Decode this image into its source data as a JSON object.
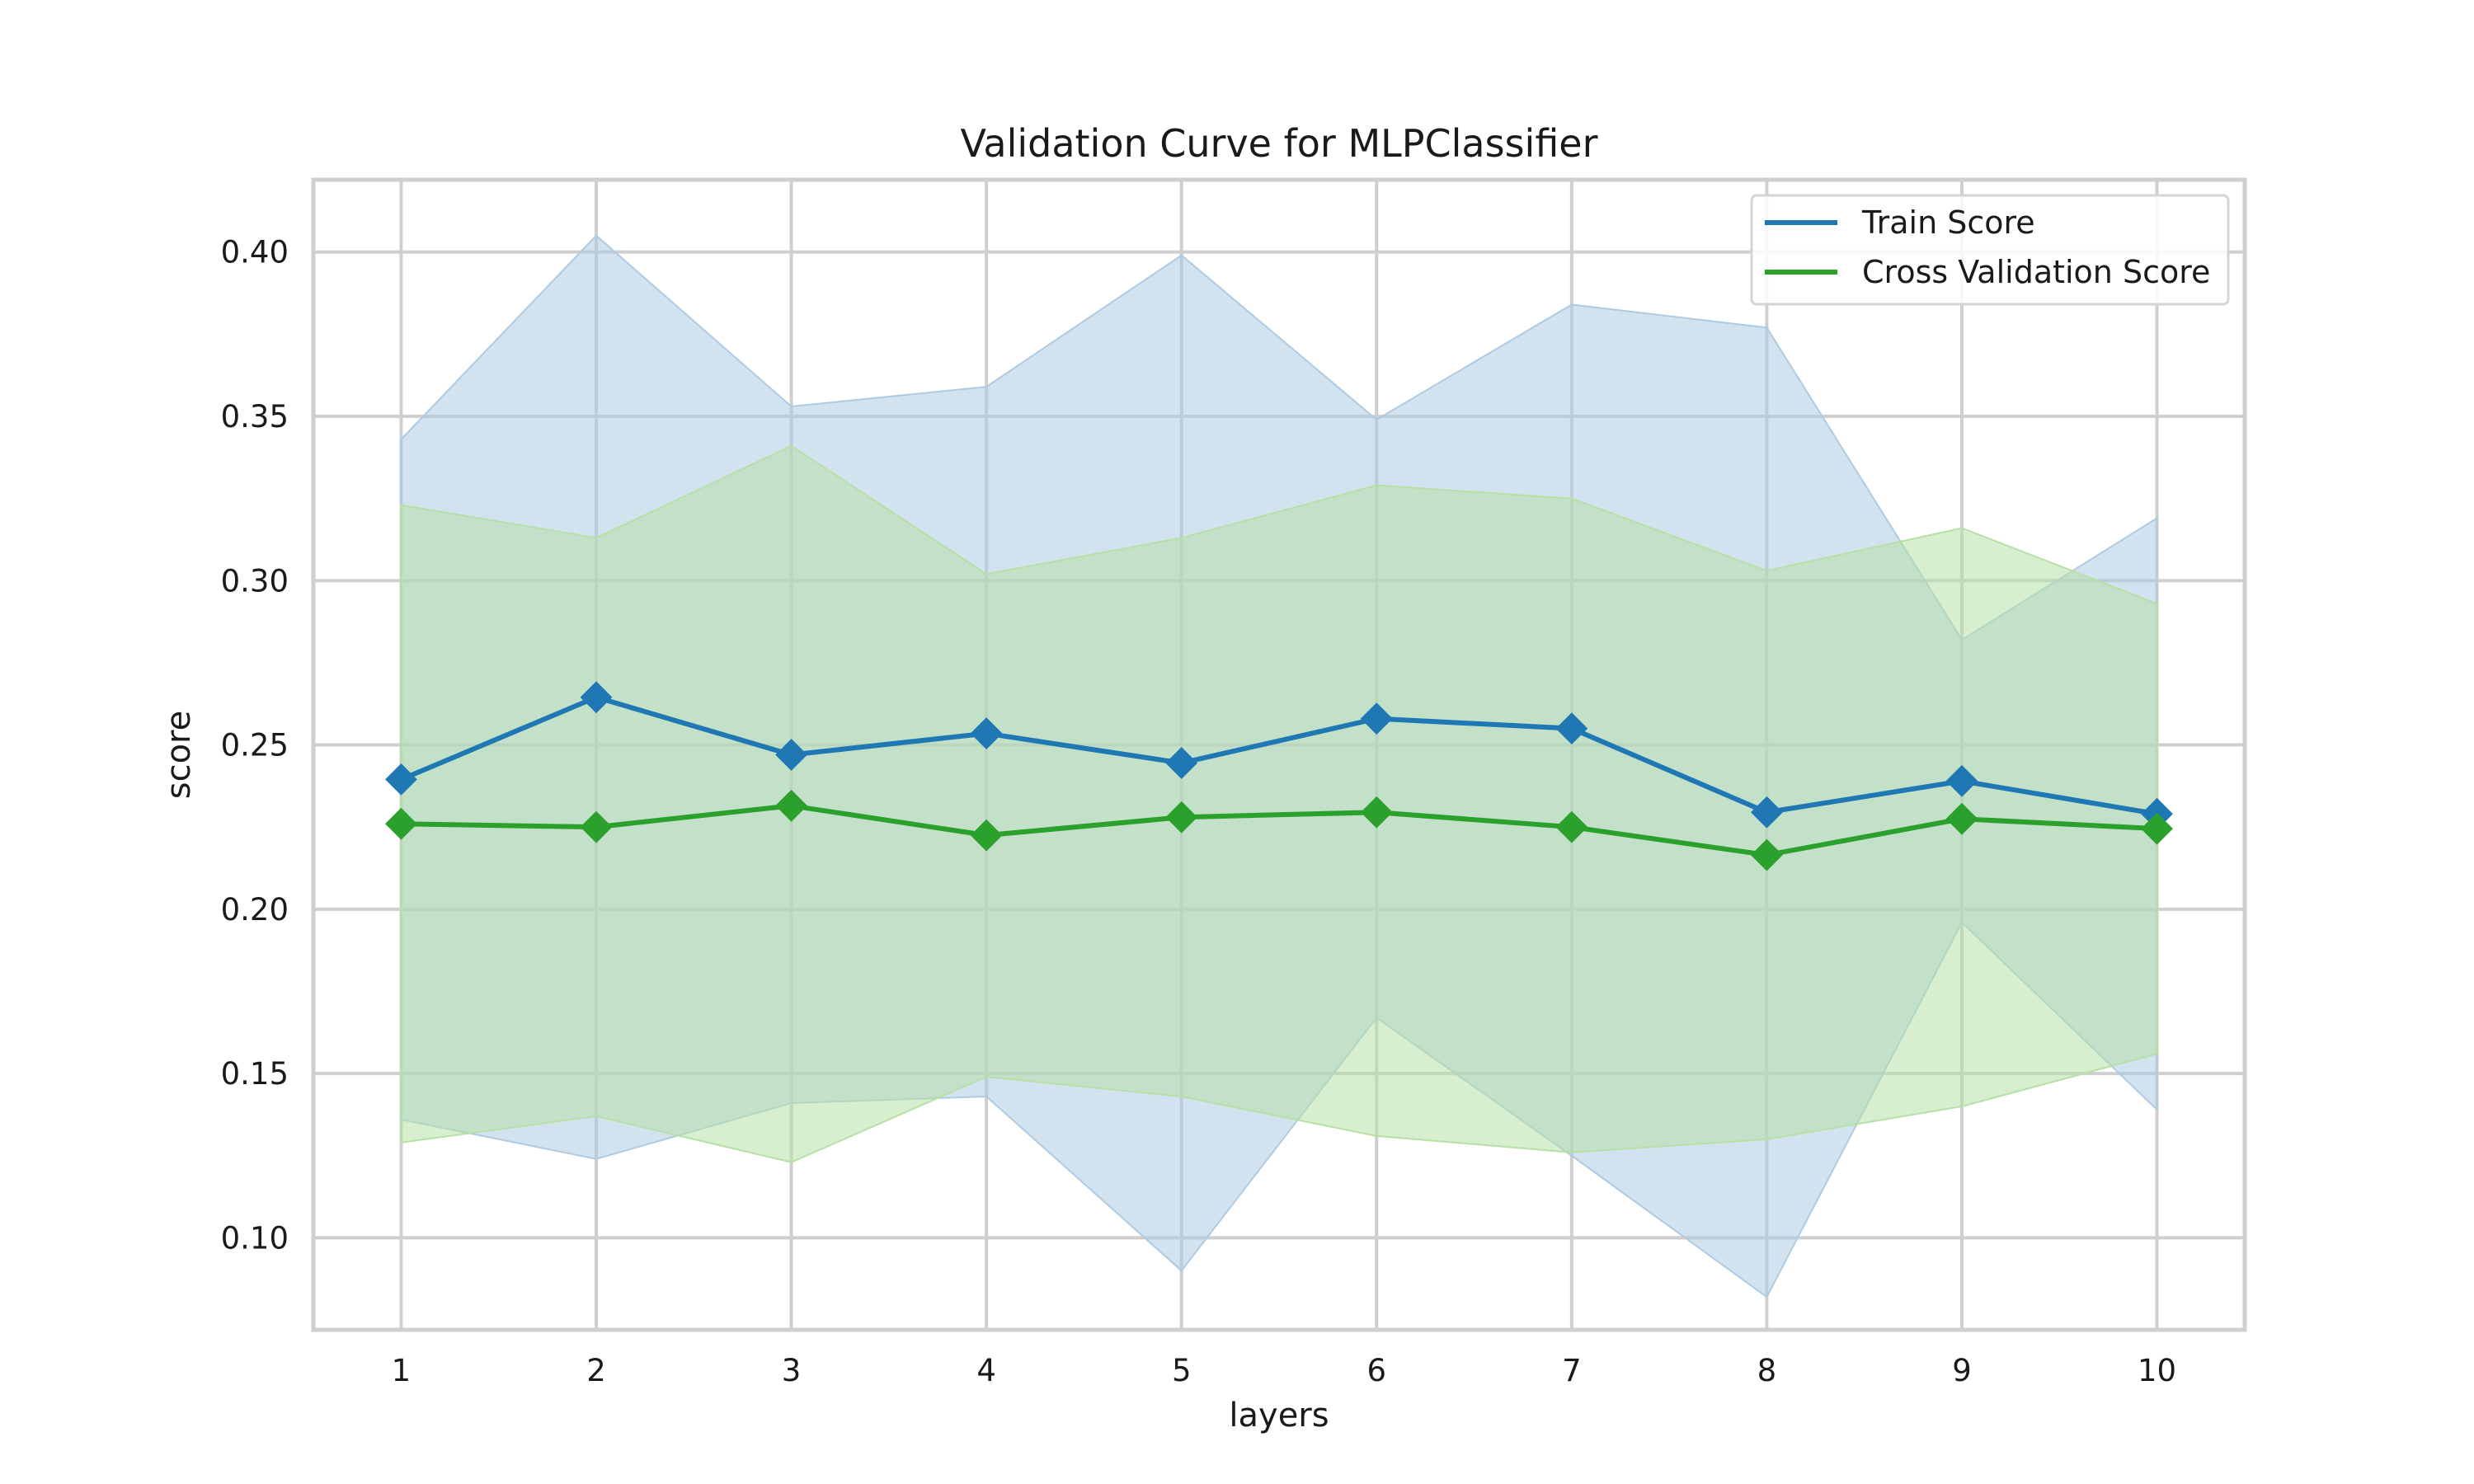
{
  "chart_data": {
    "type": "line",
    "title": "Validation Curve for MLPClassifier",
    "xlabel": "layers",
    "ylabel": "score",
    "x": [
      1,
      2,
      3,
      4,
      5,
      6,
      7,
      8,
      9,
      10
    ],
    "x_ticks": [
      "1",
      "2",
      "3",
      "4",
      "5",
      "6",
      "7",
      "8",
      "9",
      "10"
    ],
    "xlim": [
      0.55,
      10.45
    ],
    "ylim": [
      0.072,
      0.422
    ],
    "y_ticks": [
      0.1,
      0.15,
      0.2,
      0.25,
      0.3,
      0.35,
      0.4
    ],
    "y_tick_labels": [
      "0.10",
      "0.15",
      "0.20",
      "0.25",
      "0.30",
      "0.35",
      "0.40"
    ],
    "grid": true,
    "legend_position": "top-right",
    "series": [
      {
        "name": "Train Score",
        "color": "#1f77b4",
        "band_color": "#aecbe2",
        "marker": "diamond",
        "values": [
          0.2395,
          0.2645,
          0.247,
          0.2535,
          0.2445,
          0.258,
          0.255,
          0.2295,
          0.239,
          0.229
        ],
        "upper": [
          0.343,
          0.405,
          0.353,
          0.359,
          0.399,
          0.349,
          0.384,
          0.377,
          0.282,
          0.319
        ],
        "lower": [
          0.136,
          0.124,
          0.141,
          0.143,
          0.09,
          0.167,
          0.125,
          0.082,
          0.196,
          0.139
        ]
      },
      {
        "name": "Cross Validation Score",
        "color": "#2ca02c",
        "band_color": "#b7e0a7",
        "marker": "diamond",
        "values": [
          0.226,
          0.225,
          0.2315,
          0.2225,
          0.228,
          0.2295,
          0.225,
          0.2165,
          0.2275,
          0.2245
        ],
        "upper": [
          0.323,
          0.313,
          0.341,
          0.302,
          0.313,
          0.329,
          0.325,
          0.303,
          0.316,
          0.293
        ],
        "lower": [
          0.129,
          0.137,
          0.123,
          0.149,
          0.143,
          0.131,
          0.126,
          0.13,
          0.14,
          0.156
        ]
      }
    ]
  }
}
